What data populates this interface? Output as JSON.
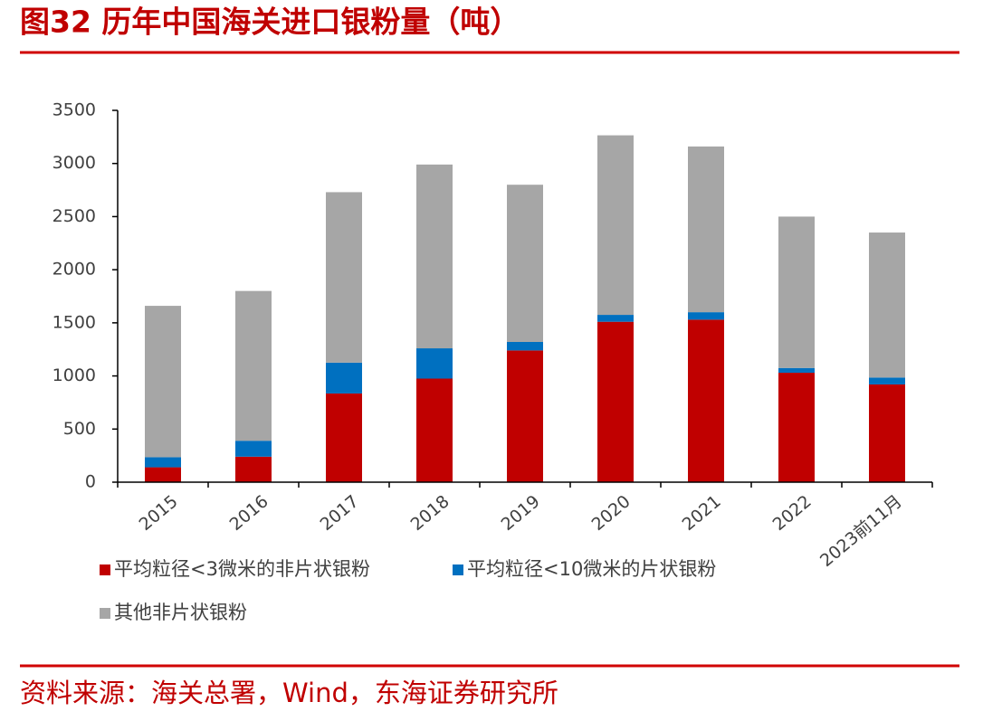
{
  "chart_data": {
    "type": "stacked_bar",
    "title": "图32  历年中国海关进口银粉量（吨）",
    "source": "资料来源：海关总署，Wind，东海证券研究所",
    "categories": [
      "2015",
      "2016",
      "2017",
      "2018",
      "2019",
      "2020",
      "2021",
      "2022",
      "2023前11月"
    ],
    "series": [
      {
        "name": "平均粒径<3微米的非片状银粉",
        "color": "#c00000",
        "values": [
          140,
          240,
          835,
          975,
          1240,
          1510,
          1530,
          1030,
          920
        ]
      },
      {
        "name": "平均粒径<10微米的片状银粉",
        "color": "#0070c0",
        "values": [
          95,
          150,
          290,
          285,
          80,
          65,
          70,
          45,
          65
        ]
      },
      {
        "name": "其他非片状银粉",
        "color": "#a6a6a6",
        "values": [
          1425,
          1410,
          1605,
          1730,
          1480,
          1690,
          1560,
          1425,
          1365
        ]
      }
    ],
    "ylim": [
      0,
      3500
    ],
    "yticks": [
      0,
      500,
      1000,
      1500,
      2000,
      2500,
      3000,
      3500
    ],
    "grid": false,
    "legend": "bottom"
  }
}
